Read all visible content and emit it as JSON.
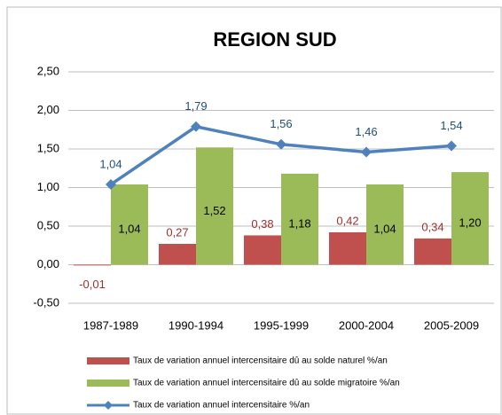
{
  "chart_data": {
    "type": "bar",
    "title": "REGION SUD",
    "categories": [
      "1987-1989",
      "1990-1994",
      "1995-1999",
      "2000-2004",
      "2005-2009"
    ],
    "series": [
      {
        "name": "Taux de variation annuel intercensitaire dû au solde naturel  %/an",
        "type": "bar",
        "color": "#c0504d",
        "values": [
          -0.01,
          0.27,
          0.38,
          0.42,
          0.34
        ],
        "value_labels": [
          "-0,01",
          "0,27",
          "0,38",
          "0,42",
          "0,34"
        ]
      },
      {
        "name": "Taux de variation annuel intercensitaire dû au solde migratoire  %/an",
        "type": "bar",
        "color": "#9bbb59",
        "values": [
          1.04,
          1.52,
          1.18,
          1.04,
          1.2
        ],
        "value_labels": [
          "1,04",
          "1,52",
          "1,18",
          "1,04",
          "1,20"
        ]
      },
      {
        "name": "Taux de variation annuel intercensitaire %/an",
        "type": "line",
        "color": "#4f81bd",
        "values": [
          1.04,
          1.79,
          1.56,
          1.46,
          1.54
        ],
        "value_labels": [
          "1,04",
          "1,79",
          "1,56",
          "1,46",
          "1,54"
        ]
      }
    ],
    "ylim": [
      -0.5,
      2.5
    ],
    "yticks": [
      {
        "value": -0.5,
        "label": "-0,50"
      },
      {
        "value": 0,
        "label": "0,00"
      },
      {
        "value": 0.5,
        "label": "0,50"
      },
      {
        "value": 1,
        "label": "1,00"
      },
      {
        "value": 1.5,
        "label": "1,50"
      },
      {
        "value": 2,
        "label": "2,00"
      },
      {
        "value": 2.5,
        "label": "2,50"
      }
    ],
    "grid": true,
    "legend": "bottom"
  }
}
